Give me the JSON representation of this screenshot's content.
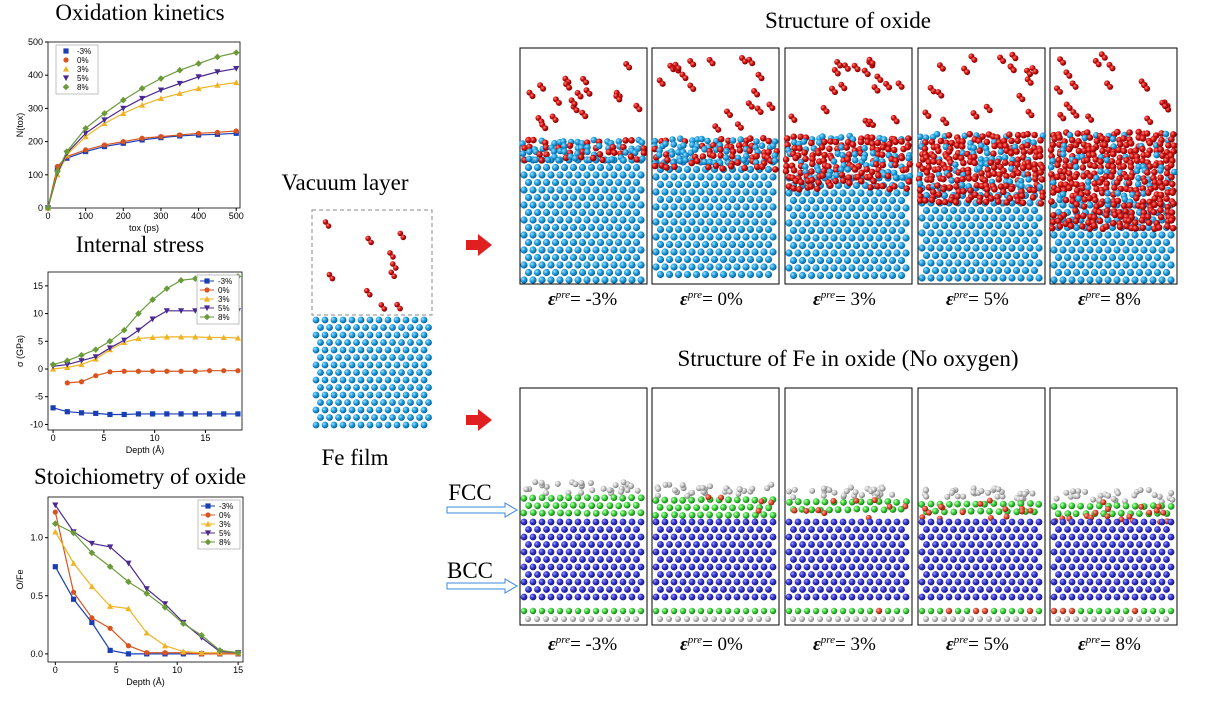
{
  "chart_data": [
    {
      "type": "line",
      "title": "Oxidation kinetics",
      "x_label": "tox (ps)",
      "y_label": "N(tox)",
      "x": [
        0,
        25,
        50,
        100,
        150,
        200,
        250,
        300,
        350,
        400,
        450,
        500
      ],
      "xlim": [
        0,
        510
      ],
      "xticks": [
        0,
        100,
        200,
        300,
        400,
        500
      ],
      "ylim": [
        0,
        500
      ],
      "yticks": [
        0,
        100,
        200,
        300,
        400,
        500
      ],
      "legend": "upper left",
      "series": [
        {
          "name": "-3%",
          "color": "#1a3fb5",
          "marker": "square",
          "values": [
            0,
            120,
            150,
            170,
            185,
            195,
            205,
            212,
            217,
            220,
            222,
            225
          ]
        },
        {
          "name": "0%",
          "color": "#d9531e",
          "marker": "circle",
          "values": [
            0,
            125,
            155,
            175,
            190,
            200,
            210,
            215,
            220,
            225,
            228,
            232
          ]
        },
        {
          "name": "3%",
          "color": "#f0b323",
          "marker": "triangle",
          "values": [
            0,
            100,
            160,
            215,
            255,
            285,
            310,
            330,
            345,
            360,
            370,
            378
          ]
        },
        {
          "name": "5%",
          "color": "#4b2a8f",
          "marker": "triangle-down",
          "values": [
            0,
            105,
            165,
            225,
            265,
            300,
            330,
            355,
            375,
            395,
            410,
            420
          ]
        },
        {
          "name": "8%",
          "color": "#6a9a3a",
          "marker": "diamond",
          "values": [
            0,
            110,
            170,
            240,
            285,
            325,
            360,
            390,
            415,
            435,
            455,
            468
          ]
        }
      ]
    },
    {
      "type": "line",
      "title": "Internal stress",
      "x_label": "Depth (Å)",
      "y_label": "σ (GPa)",
      "x": [
        0,
        1.4,
        2.8,
        4.2,
        5.6,
        7,
        8.4,
        9.8,
        11.2,
        12.6,
        14,
        15.4,
        16.8,
        18.2
      ],
      "xlim": [
        -0.5,
        18.6
      ],
      "xticks": [
        0,
        5,
        10,
        15
      ],
      "ylim": [
        -11,
        17.5
      ],
      "yticks": [
        -10,
        -5,
        0,
        5,
        10,
        15
      ],
      "legend": "upper right",
      "series": [
        {
          "name": "-3%",
          "color": "#1a3fb5",
          "marker": "square",
          "values": [
            -7,
            -7.7,
            -7.9,
            -8.0,
            -8.2,
            -8.2,
            -8.1,
            -8.1,
            -8.1,
            -8.1,
            -8.1,
            -8.1,
            -8.1,
            -8.1
          ]
        },
        {
          "name": "0%",
          "color": "#d9531e",
          "marker": "circle",
          "values": [
            null,
            -2.5,
            -2.3,
            -1.2,
            -0.5,
            -0.4,
            -0.4,
            -0.4,
            -0.4,
            -0.4,
            -0.4,
            -0.3,
            -0.3,
            -0.3
          ]
        },
        {
          "name": "3%",
          "color": "#f0b323",
          "marker": "triangle",
          "values": [
            0,
            0.3,
            0.8,
            1.8,
            3.5,
            4.8,
            5.5,
            5.7,
            5.8,
            5.8,
            5.8,
            5.7,
            5.7,
            5.6
          ]
        },
        {
          "name": "5%",
          "color": "#4b2a8f",
          "marker": "triangle-down",
          "values": [
            0.5,
            0.8,
            1.5,
            2.2,
            3.8,
            5.2,
            7,
            9,
            10.5,
            10.5,
            10.5,
            10.5,
            10.4,
            10.5
          ]
        },
        {
          "name": "8%",
          "color": "#6a9a3a",
          "marker": "diamond",
          "values": [
            0.8,
            1.5,
            2.5,
            3.5,
            5,
            7,
            10,
            12.5,
            14.5,
            16,
            16.3,
            16.5,
            16.5,
            16.7
          ]
        }
      ]
    },
    {
      "type": "line",
      "title": "Stoichiometry of oxide",
      "x_label": "Depth (Å)",
      "y_label": "O/Fe",
      "x": [
        0,
        1.5,
        3,
        4.5,
        6,
        7.5,
        9,
        10.5,
        12,
        13.5,
        15
      ],
      "xlim": [
        -0.6,
        15.4
      ],
      "xticks": [
        0,
        5,
        10,
        15
      ],
      "ylim": [
        -0.07,
        1.35
      ],
      "yticks": [
        {
          "value": 0,
          "label": "0.0"
        },
        0.5,
        {
          "value": 1,
          "label": "1.0"
        }
      ],
      "legend": "upper right",
      "series": [
        {
          "name": "-3%",
          "color": "#1a3fb5",
          "marker": "square",
          "values": [
            0.75,
            0.47,
            0.27,
            0.03,
            0,
            0,
            0,
            0,
            0,
            0,
            0
          ]
        },
        {
          "name": "0%",
          "color": "#d9531e",
          "marker": "circle",
          "values": [
            1.22,
            0.53,
            0.31,
            0.22,
            0.07,
            0.01,
            0.01,
            0.01,
            0,
            0,
            0
          ]
        },
        {
          "name": "3%",
          "color": "#f0b323",
          "marker": "triangle",
          "values": [
            1.05,
            0.78,
            0.58,
            0.41,
            0.39,
            0.18,
            0.07,
            0.02,
            0.01,
            0.01,
            0.01
          ]
        },
        {
          "name": "5%",
          "color": "#4b2a8f",
          "marker": "triangle-down",
          "values": [
            1.28,
            1.05,
            0.95,
            0.92,
            0.78,
            0.56,
            0.43,
            0.27,
            0.14,
            0.02,
            0.01
          ]
        },
        {
          "name": "8%",
          "color": "#6a9a3a",
          "marker": "diamond",
          "values": [
            1.12,
            1.04,
            0.87,
            0.75,
            0.62,
            0.52,
            0.4,
            0.26,
            0.16,
            0.03,
            0.01
          ]
        }
      ]
    }
  ],
  "figure": {
    "schematic": {
      "top_label": "Vacuum layer",
      "bottom_label": "Fe film"
    },
    "oxide_panel": {
      "title": "Structure of oxide"
    },
    "fe_panel": {
      "title": "Structure of Fe in oxide (No oxygen)",
      "phase_labels": [
        "FCC",
        "BCC"
      ]
    },
    "strain_labels": [
      {
        "symbol": "ε",
        "sup": "pre",
        "value": "= -3%"
      },
      {
        "symbol": "ε",
        "sup": "pre",
        "value": "= 0%"
      },
      {
        "symbol": "ε",
        "sup": "pre",
        "value": "= 3%"
      },
      {
        "symbol": "ε",
        "sup": "pre",
        "value": "= 5%"
      },
      {
        "symbol": "ε",
        "sup": "pre",
        "value": "= 8%"
      }
    ]
  }
}
